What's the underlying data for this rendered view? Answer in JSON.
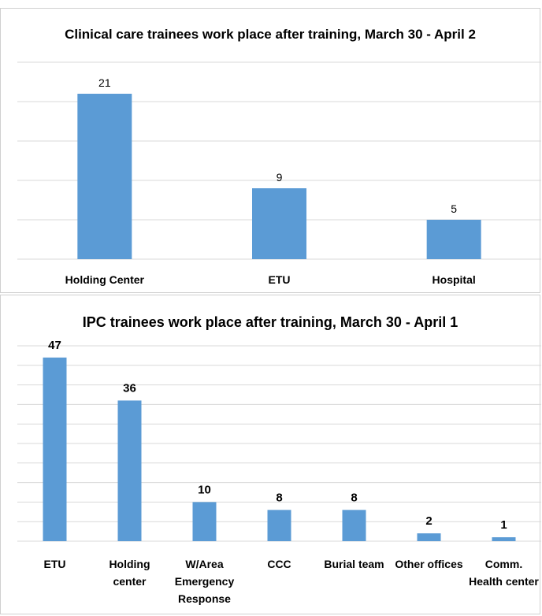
{
  "chart_data": [
    {
      "type": "bar",
      "title": "Clinical care trainees work place after training, March 30 - April 2",
      "categories": [
        "Holding Center",
        "ETU",
        "Hospital"
      ],
      "values": [
        21,
        9,
        5
      ],
      "xlabel": "",
      "ylabel": "",
      "ylim": [
        0,
        25
      ],
      "grid": true,
      "legend": "none",
      "bar_color": "#5b9bd5"
    },
    {
      "type": "bar",
      "title": "IPC trainees work place after training, March 30 - April 1",
      "categories": [
        "ETU",
        "Holding center",
        "W/Area Emergency Response",
        "CCC",
        "Burial team",
        "Other offices",
        "Comm. Health center"
      ],
      "category_lines": [
        [
          "ETU"
        ],
        [
          "Holding",
          "center"
        ],
        [
          "W/Area",
          "Emergency",
          "Response"
        ],
        [
          "CCC"
        ],
        [
          "Burial team"
        ],
        [
          "Other offices"
        ],
        [
          "Comm.",
          "Health center"
        ]
      ],
      "values": [
        47,
        36,
        10,
        8,
        8,
        2,
        1
      ],
      "xlabel": "",
      "ylabel": "",
      "ylim": [
        0,
        50
      ],
      "grid": true,
      "legend": "none",
      "bar_color": "#5b9bd5"
    }
  ]
}
